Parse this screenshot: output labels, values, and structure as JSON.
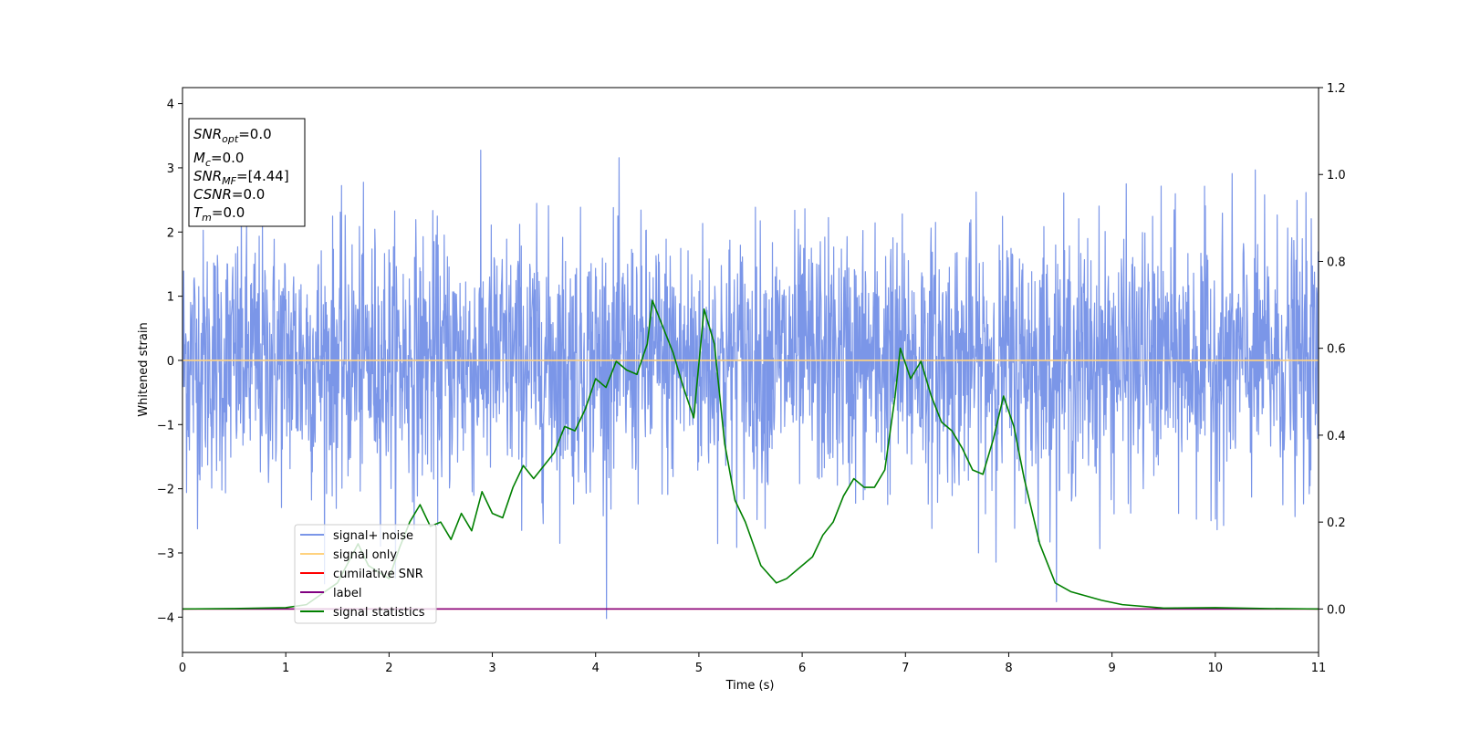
{
  "chart_data": {
    "type": "line",
    "xlabel": "Time (s)",
    "ylabel": "Whitened strain",
    "xlim": [
      0,
      11
    ],
    "ylim_left": [
      -4.55,
      4.25
    ],
    "ylim_right": [
      -0.1,
      1.2
    ],
    "x_ticks": [
      "0",
      "1",
      "2",
      "3",
      "4",
      "5",
      "6",
      "7",
      "8",
      "9",
      "10",
      "11"
    ],
    "y_ticks_left": [
      "−4",
      "−3",
      "−2",
      "−1",
      "0",
      "1",
      "2",
      "3",
      "4"
    ],
    "y_ticks_right": [
      "0.0",
      "0.2",
      "0.4",
      "0.6",
      "0.8",
      "1.0",
      "1.2"
    ],
    "legend_position": "lower-left",
    "info_box": {
      "snr_opt": {
        "base": "SNR",
        "sub": "opt",
        "value": "=0.0"
      },
      "mc": {
        "base": "M",
        "sub": "c",
        "value": "=0.0"
      },
      "snr_mf": {
        "base": "SNR",
        "sub": "MF",
        "value": "=[4.44]"
      },
      "csnr": {
        "base": "CSNR",
        "value": "=0.0"
      },
      "tm": {
        "base": "T",
        "sub": "m",
        "value": "=0.0"
      }
    },
    "series": [
      {
        "name": "signal+ noise",
        "color": "#7b96e8",
        "axis": "left",
        "kind": "noise",
        "amplitude_std": 1.0,
        "x_range": [
          0,
          11
        ]
      },
      {
        "name": "signal only",
        "color": "#ffd27f",
        "axis": "left",
        "x": [
          0,
          11
        ],
        "values": [
          0,
          0
        ]
      },
      {
        "name": "cumilative SNR",
        "color": "#ff0000",
        "axis": "right",
        "x": [
          0,
          11
        ],
        "values": [
          0,
          0
        ]
      },
      {
        "name": "label",
        "color": "#800080",
        "axis": "right",
        "x": [
          0,
          11
        ],
        "values": [
          0,
          0
        ]
      },
      {
        "name": "signal statistics",
        "color": "#008000",
        "axis": "right",
        "x": [
          0,
          0.5,
          1.0,
          1.2,
          1.5,
          1.7,
          1.8,
          2.0,
          2.1,
          2.2,
          2.3,
          2.4,
          2.5,
          2.6,
          2.7,
          2.8,
          2.9,
          3.0,
          3.1,
          3.2,
          3.3,
          3.4,
          3.5,
          3.6,
          3.7,
          3.8,
          3.9,
          4.0,
          4.1,
          4.2,
          4.3,
          4.4,
          4.5,
          4.55,
          4.65,
          4.75,
          4.85,
          4.95,
          5.05,
          5.15,
          5.25,
          5.35,
          5.45,
          5.6,
          5.75,
          5.85,
          6.0,
          6.1,
          6.2,
          6.3,
          6.4,
          6.5,
          6.6,
          6.7,
          6.8,
          6.9,
          6.95,
          7.05,
          7.15,
          7.25,
          7.35,
          7.45,
          7.55,
          7.65,
          7.75,
          7.85,
          7.95,
          8.05,
          8.15,
          8.3,
          8.45,
          8.6,
          8.75,
          8.9,
          9.1,
          9.5,
          10.0,
          10.5,
          11.0
        ],
        "values": [
          0.0,
          0.001,
          0.003,
          0.01,
          0.06,
          0.15,
          0.1,
          0.07,
          0.14,
          0.2,
          0.24,
          0.19,
          0.2,
          0.16,
          0.22,
          0.18,
          0.27,
          0.22,
          0.21,
          0.28,
          0.33,
          0.3,
          0.33,
          0.36,
          0.42,
          0.41,
          0.46,
          0.53,
          0.51,
          0.57,
          0.55,
          0.54,
          0.61,
          0.71,
          0.65,
          0.59,
          0.51,
          0.44,
          0.69,
          0.61,
          0.38,
          0.25,
          0.2,
          0.1,
          0.06,
          0.07,
          0.1,
          0.12,
          0.17,
          0.2,
          0.26,
          0.3,
          0.28,
          0.28,
          0.32,
          0.49,
          0.6,
          0.53,
          0.57,
          0.49,
          0.43,
          0.41,
          0.37,
          0.32,
          0.31,
          0.39,
          0.49,
          0.42,
          0.3,
          0.15,
          0.06,
          0.04,
          0.03,
          0.02,
          0.01,
          0.002,
          0.003,
          0.001,
          0.0
        ]
      }
    ]
  }
}
